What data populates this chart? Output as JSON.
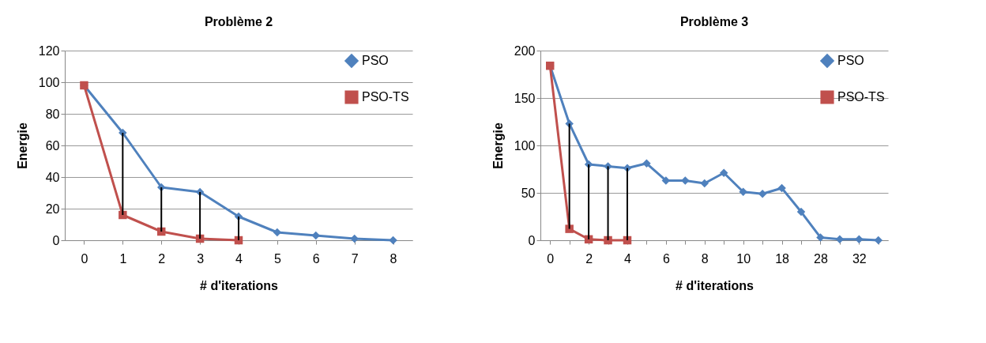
{
  "chart_data": [
    {
      "type": "line",
      "title": "Problème 2",
      "xlabel": "# d'iterations",
      "ylabel": "Energie",
      "categories": [
        "0",
        "1",
        "2",
        "3",
        "4",
        "5",
        "6",
        "7",
        "8"
      ],
      "series": [
        {
          "name": "PSO",
          "color": "#4f81bd",
          "marker": "diamond",
          "values": [
            98,
            68,
            33.5,
            30.5,
            15,
            5,
            3,
            1,
            0
          ]
        },
        {
          "name": "PSO-TS",
          "color": "#c0504d",
          "marker": "square",
          "values": [
            98,
            16,
            5.5,
            1,
            0,
            null,
            null,
            null,
            null
          ],
          "errors": [
            null,
            [
              16,
              68
            ],
            [
              5.5,
              33.5
            ],
            [
              1,
              30.5
            ],
            [
              0,
              15
            ],
            null,
            null,
            null,
            null
          ]
        }
      ],
      "ylim": [
        0,
        120
      ],
      "yticks": [
        0,
        20,
        40,
        60,
        80,
        100,
        120
      ],
      "grid": "y",
      "legend": "top right",
      "line_style": "solid"
    },
    {
      "type": "line",
      "title": "Problème 3",
      "xlabel": "# d'iterations",
      "ylabel": "Energie",
      "categories": [
        "0",
        null,
        "2",
        null,
        "4",
        null,
        "6",
        null,
        "8",
        null,
        "10",
        null,
        "18",
        null,
        "28",
        null,
        "32",
        null
      ],
      "series": [
        {
          "name": "PSO",
          "color": "#4f81bd",
          "marker": "diamond",
          "values": [
            184,
            123,
            80,
            78,
            76,
            81,
            63,
            63,
            60,
            71,
            51,
            49,
            55,
            30,
            3,
            1,
            1,
            0
          ]
        },
        {
          "name": "PSO-TS",
          "color": "#c0504d",
          "marker": "square",
          "values": [
            184,
            12,
            1,
            0,
            0,
            null,
            null,
            null,
            null,
            null,
            null,
            null,
            null,
            null,
            null,
            null,
            null,
            null
          ],
          "errors": [
            null,
            [
              12,
              123
            ],
            [
              1,
              80
            ],
            [
              0,
              78
            ],
            [
              0,
              76
            ],
            null,
            null,
            null,
            null,
            null,
            null,
            null,
            null,
            null,
            null,
            null,
            null,
            null
          ]
        }
      ],
      "ylim": [
        0,
        200
      ],
      "yticks": [
        0,
        50,
        100,
        150,
        200
      ],
      "grid": "y",
      "legend": "top right",
      "line_style": "solid"
    }
  ]
}
